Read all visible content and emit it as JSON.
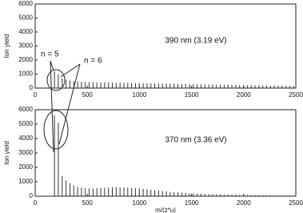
{
  "chart_data": [
    {
      "type": "bar",
      "label": "390 nm (3.19 eV)",
      "y_label": "Ion yield",
      "color": "#333333",
      "annotations": [
        "n = 5",
        "n = 6"
      ],
      "xlim": [
        0,
        2500
      ],
      "xticks": [
        0,
        500,
        1000,
        1500,
        2000,
        2500
      ],
      "ylim": [
        0,
        6000
      ],
      "yticks": [
        0,
        1000,
        2000,
        3000,
        4000,
        5000,
        6000
      ],
      "x": [
        185,
        222,
        259,
        296,
        333,
        370,
        407,
        444,
        481,
        518,
        555,
        592,
        629,
        666,
        703,
        740,
        777,
        814,
        851,
        888,
        925,
        962,
        999,
        1036,
        1073,
        1110,
        1147,
        1184,
        1221,
        1258,
        1295,
        1332,
        1369,
        1406,
        1443,
        1480,
        1517,
        1554,
        1591,
        1628,
        1665,
        1702,
        1739,
        1776,
        1813,
        1850,
        1887,
        1924,
        1961,
        1998,
        2035,
        2072,
        2109,
        2146,
        2183,
        2220,
        2257,
        2294,
        2331,
        2368,
        2405,
        2442,
        2479
      ],
      "values": [
        1200,
        1000,
        700,
        600,
        550,
        500,
        480,
        460,
        440,
        430,
        420,
        410,
        400,
        400,
        390,
        390,
        380,
        380,
        370,
        370,
        360,
        360,
        350,
        350,
        340,
        340,
        330,
        330,
        320,
        320,
        310,
        310,
        300,
        300,
        290,
        290,
        280,
        280,
        270,
        270,
        260,
        260,
        250,
        250,
        240,
        240,
        230,
        230,
        220,
        220,
        210,
        210,
        200,
        200,
        190,
        190,
        180,
        180,
        170,
        170,
        160,
        160,
        150
      ]
    },
    {
      "type": "bar",
      "label": "370 nm (3.36 eV)",
      "y_label": "Ion yield",
      "x_label": "m/(z*u)",
      "color": "#333333",
      "xlim": [
        0,
        2500
      ],
      "xticks": [
        0,
        500,
        1000,
        1500,
        2000,
        2500
      ],
      "ylim": [
        0,
        6000
      ],
      "yticks": [
        0,
        1000,
        2000,
        3000,
        4000,
        5000,
        6000
      ],
      "x": [
        185,
        222,
        259,
        296,
        333,
        370,
        407,
        444,
        481,
        518,
        555,
        592,
        629,
        666,
        703,
        740,
        777,
        814,
        851,
        888,
        925,
        962,
        999,
        1036,
        1073,
        1110,
        1147,
        1184,
        1221,
        1258,
        1295,
        1332,
        1369,
        1406,
        1443,
        1480,
        1517,
        1554,
        1591,
        1628,
        1665,
        1702,
        1739,
        1776,
        1813,
        1850,
        1887,
        1924,
        1961,
        1998,
        2035,
        2072,
        2109,
        2146,
        2183,
        2220,
        2257,
        2294,
        2331,
        2368,
        2405,
        2442,
        2479
      ],
      "values": [
        5600,
        5100,
        1400,
        1100,
        900,
        750,
        650,
        600,
        560,
        540,
        540,
        550,
        560,
        580,
        600,
        610,
        620,
        620,
        610,
        600,
        580,
        560,
        540,
        510,
        480,
        450,
        420,
        390,
        360,
        330,
        300,
        280,
        260,
        240,
        220,
        200,
        190,
        180,
        170,
        160,
        150,
        140,
        130,
        120,
        115,
        110,
        105,
        100,
        95,
        90,
        85,
        80,
        75,
        70,
        65,
        60,
        58,
        56,
        54,
        52,
        50,
        48,
        46
      ]
    }
  ]
}
